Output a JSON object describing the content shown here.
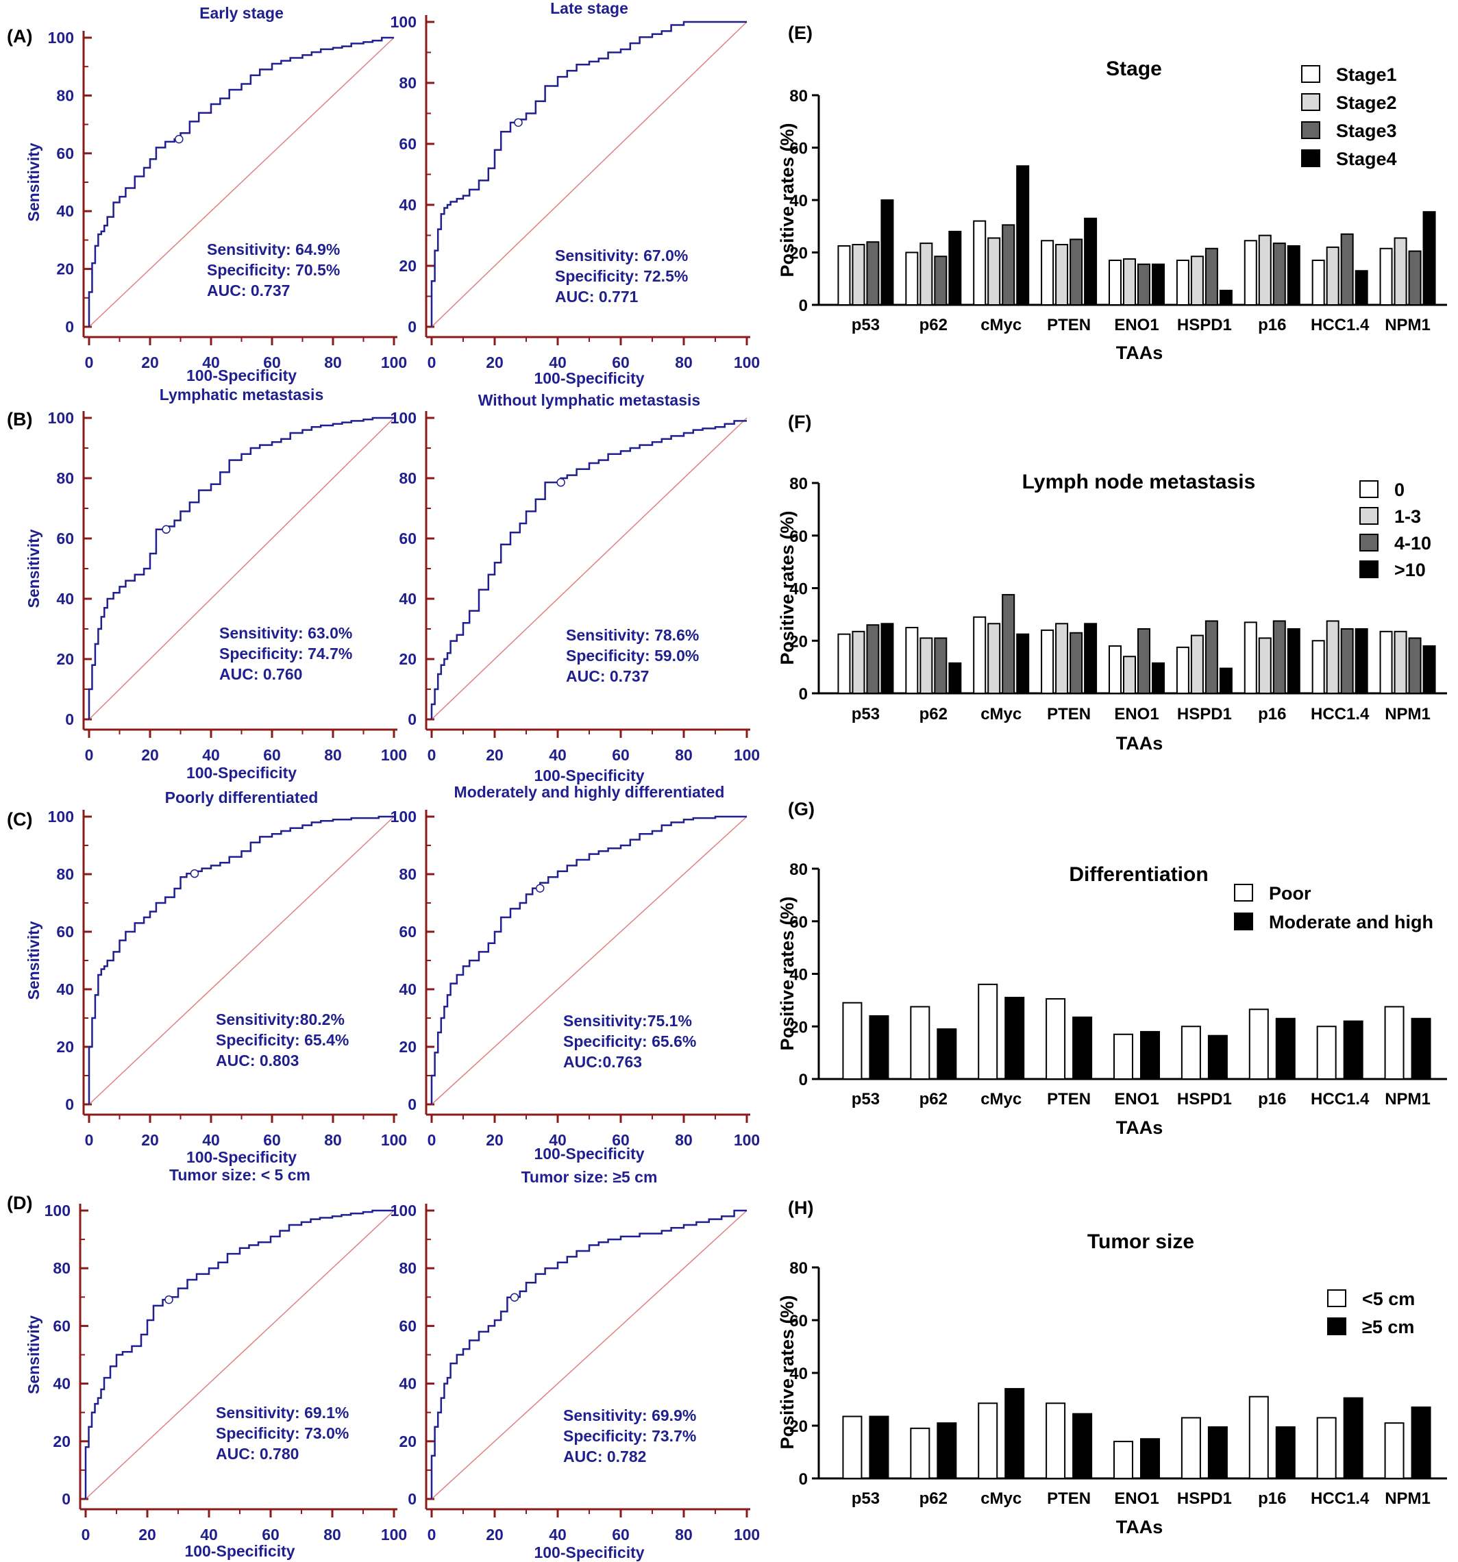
{
  "colors": {
    "roc_curve": "#1f1f8f",
    "roc_axis": "#8b1a1a",
    "diagonal": "#e08080",
    "bar_edge": "#000000"
  },
  "chart_data": [
    {
      "type": "line",
      "panel": "(A)",
      "title": "Early stage",
      "xlabel": "100-Specificity",
      "ylabel": "Sensitivity",
      "xlim": [
        0,
        100
      ],
      "ylim": [
        0,
        100
      ],
      "x": [
        0,
        1,
        2,
        3,
        4,
        5,
        6,
        8,
        10,
        12,
        15,
        18,
        20,
        22,
        25,
        28,
        30,
        33,
        36,
        40,
        43,
        46,
        50,
        53,
        56,
        60,
        63,
        66,
        70,
        73,
        76,
        80,
        83,
        86,
        90,
        93,
        96,
        100
      ],
      "y": [
        0,
        12,
        22,
        28,
        32,
        33,
        35,
        38,
        43,
        45,
        48,
        52,
        55,
        58,
        62,
        64,
        64.9,
        67,
        71,
        74,
        77,
        79,
        82,
        84,
        87,
        89,
        91,
        92,
        93,
        94,
        95,
        96,
        96.5,
        97,
        98,
        98.5,
        99,
        100
      ],
      "cutoff": [
        29.5,
        64.9
      ],
      "stats": [
        "Sensitivity: 64.9%",
        "Specificity: 70.5%",
        "AUC: 0.737"
      ]
    },
    {
      "type": "line",
      "panel": "",
      "title": "Late stage",
      "xlabel": "100-Specificity",
      "ylabel": "",
      "xlim": [
        0,
        100
      ],
      "ylim": [
        0,
        100
      ],
      "x": [
        0,
        1,
        2,
        3,
        4,
        5,
        6,
        8,
        10,
        12,
        15,
        18,
        20,
        22,
        25,
        27.5,
        30,
        33,
        36,
        40,
        43,
        46,
        50,
        53,
        56,
        60,
        63,
        66,
        70,
        73,
        76,
        80,
        83,
        86,
        90,
        93,
        96,
        100
      ],
      "y": [
        0,
        15,
        25,
        32,
        37,
        39,
        40,
        41,
        42,
        43,
        45,
        48,
        52,
        58,
        64,
        67,
        68,
        70,
        74,
        79,
        82,
        84,
        86,
        87,
        88,
        90,
        91,
        93,
        95,
        96,
        97,
        99,
        100,
        100,
        100,
        100,
        100,
        100
      ],
      "cutoff": [
        27.5,
        67.0
      ],
      "stats": [
        "Sensitivity: 67.0%",
        "Specificity: 72.5%",
        "AUC: 0.771"
      ]
    },
    {
      "type": "line",
      "panel": "(B)",
      "title": "Lymphatic metastasis",
      "xlabel": "100-Specificity",
      "ylabel": "Sensitivity",
      "xlim": [
        0,
        100
      ],
      "ylim": [
        0,
        100
      ],
      "x": [
        0,
        1,
        2,
        3,
        4,
        5,
        6,
        8,
        10,
        12,
        15,
        18,
        20,
        22,
        25,
        28,
        30,
        33,
        36,
        40,
        43,
        46,
        50,
        53,
        56,
        60,
        63,
        66,
        70,
        73,
        76,
        80,
        83,
        86,
        90,
        93,
        96,
        100
      ],
      "y": [
        0,
        10,
        18,
        25,
        30,
        34,
        37,
        40,
        42,
        44,
        46,
        48,
        50,
        55,
        63,
        64,
        66,
        69,
        72,
        76,
        78,
        82,
        86,
        88,
        90,
        91,
        92,
        93,
        95,
        96,
        97,
        97.5,
        98,
        98.5,
        99,
        99.5,
        100,
        100
      ],
      "cutoff": [
        25.3,
        63.0
      ],
      "stats": [
        "Sensitivity: 63.0%",
        "Specificity: 74.7%",
        "AUC: 0.760"
      ]
    },
    {
      "type": "line",
      "panel": "",
      "title": "Without lymphatic metastasis",
      "xlabel": "100-Specificity",
      "ylabel": "",
      "xlim": [
        0,
        100
      ],
      "ylim": [
        0,
        100
      ],
      "x": [
        0,
        1,
        2,
        3,
        4,
        5,
        6,
        8,
        10,
        12,
        15,
        18,
        20,
        22,
        25,
        28,
        30,
        33,
        36,
        41,
        43,
        46,
        50,
        53,
        56,
        60,
        63,
        66,
        70,
        73,
        76,
        80,
        83,
        86,
        90,
        93,
        96,
        100
      ],
      "y": [
        0,
        5,
        10,
        15,
        18,
        20,
        22,
        26,
        28,
        32,
        36,
        43,
        48,
        52,
        58,
        62,
        65,
        69,
        73,
        78.6,
        80,
        81,
        83,
        85,
        86,
        88,
        89,
        90,
        91,
        92,
        93,
        94,
        95,
        96,
        96.5,
        97,
        98,
        99
      ],
      "cutoff": [
        41.0,
        78.6
      ],
      "stats": [
        "Sensitivity: 78.6%",
        "Specificity: 59.0%",
        "AUC: 0.737"
      ]
    },
    {
      "type": "line",
      "panel": "(C)",
      "title": "Poorly differentiated",
      "xlabel": "100-Specificity",
      "ylabel": "Sensitivity",
      "xlim": [
        0,
        100
      ],
      "ylim": [
        0,
        100
      ],
      "x": [
        0,
        1,
        2,
        3,
        4,
        5,
        6,
        8,
        10,
        12,
        15,
        18,
        20,
        22,
        25,
        28,
        30,
        32,
        34.6,
        37,
        40,
        43,
        46,
        50,
        53,
        56,
        60,
        63,
        66,
        70,
        73,
        76,
        80,
        83,
        86,
        90,
        95,
        100
      ],
      "y": [
        0,
        20,
        30,
        38,
        45,
        47,
        48,
        50,
        53,
        57,
        60,
        63,
        65,
        67,
        70,
        72,
        75,
        79,
        80.2,
        81,
        82,
        83,
        84,
        86,
        88,
        91,
        93,
        94,
        95,
        96,
        97,
        98,
        98.5,
        99,
        99,
        99.5,
        99.5,
        100
      ],
      "cutoff": [
        34.6,
        80.2
      ],
      "stats": [
        "Sensitivity:80.2%",
        "Specificity: 65.4%",
        "AUC: 0.803"
      ]
    },
    {
      "type": "line",
      "panel": "",
      "title": "Moderately and highly differentiated",
      "xlabel": "100-Specificity",
      "ylabel": "",
      "xlim": [
        0,
        100
      ],
      "ylim": [
        0,
        100
      ],
      "x": [
        0,
        1,
        2,
        3,
        4,
        5,
        6,
        8,
        10,
        12,
        15,
        18,
        20,
        22,
        25,
        28,
        30,
        32,
        34.4,
        37,
        40,
        43,
        46,
        50,
        53,
        56,
        60,
        63,
        66,
        70,
        73,
        76,
        80,
        83,
        86,
        90,
        95,
        100
      ],
      "y": [
        0,
        10,
        18,
        25,
        30,
        34,
        38,
        42,
        45,
        48,
        50,
        53,
        56,
        60,
        65,
        68,
        70,
        73,
        75.1,
        77,
        79,
        81,
        83,
        85,
        87,
        88,
        89,
        90,
        92,
        94,
        95,
        97,
        98,
        99,
        99.5,
        99.5,
        100,
        100
      ],
      "cutoff": [
        34.4,
        75.1
      ],
      "stats": [
        "Sensitivity:75.1%",
        "Specificity: 65.6%",
        "AUC:0.763"
      ]
    },
    {
      "type": "line",
      "panel": "(D)",
      "title": "Tumor size: < 5 cm",
      "xlabel": "100-Specificity",
      "ylabel": "Sensitivity",
      "xlim": [
        0,
        100
      ],
      "ylim": [
        0,
        100
      ],
      "x": [
        0,
        1,
        2,
        3,
        4,
        5,
        6,
        8,
        10,
        12,
        15,
        18,
        20,
        22,
        25,
        27,
        30,
        33,
        36,
        40,
        43,
        46,
        50,
        53,
        56,
        60,
        63,
        66,
        70,
        73,
        76,
        80,
        83,
        86,
        90,
        93,
        96,
        100
      ],
      "y": [
        0,
        18,
        25,
        30,
        33,
        35,
        38,
        42,
        46,
        50,
        51,
        53,
        57,
        62,
        67,
        69.1,
        70,
        73,
        76,
        78,
        80,
        82,
        85,
        87,
        88,
        89,
        91,
        93,
        95,
        96,
        97,
        97.5,
        98,
        98.5,
        99,
        99.5,
        100,
        100
      ],
      "cutoff": [
        27.0,
        69.1
      ],
      "stats": [
        "Sensitivity: 69.1%",
        "Specificity: 73.0%",
        "AUC: 0.780"
      ]
    },
    {
      "type": "line",
      "panel": "",
      "title": "Tumor size: ≥5 cm",
      "xlabel": "100-Specificity",
      "ylabel": "",
      "xlim": [
        0,
        100
      ],
      "ylim": [
        0,
        100
      ],
      "x": [
        0,
        1,
        2,
        3,
        4,
        5,
        6,
        8,
        10,
        12,
        15,
        18,
        20,
        22,
        24,
        26.3,
        28,
        30,
        33,
        36,
        40,
        43,
        46,
        50,
        53,
        56,
        60,
        63,
        66,
        70,
        73,
        76,
        80,
        84,
        88,
        92,
        96,
        100
      ],
      "y": [
        0,
        15,
        25,
        30,
        35,
        40,
        42,
        47,
        50,
        52,
        55,
        58,
        60,
        62,
        65,
        69.9,
        70,
        72,
        75,
        78,
        80,
        82,
        84,
        86,
        88,
        89,
        90,
        91,
        91,
        92,
        92,
        93,
        94,
        95,
        96,
        97,
        98,
        100
      ],
      "cutoff": [
        26.3,
        69.9
      ],
      "stats": [
        "Sensitivity: 69.9%",
        "Specificity: 73.7%",
        "AUC: 0.782"
      ]
    },
    {
      "type": "bar",
      "panel": "(E)",
      "title": "Stage",
      "xlabel": "TAAs",
      "ylabel": "Positive rates (%)",
      "ylim": [
        0,
        80
      ],
      "categories": [
        "p53",
        "p62",
        "cMyc",
        "PTEN",
        "ENO1",
        "HSPD1",
        "p16",
        "HCC1.4",
        "NPM1"
      ],
      "series": [
        {
          "name": "Stage1",
          "color": "#ffffff",
          "values": [
            22.5,
            20,
            32,
            24.5,
            17,
            17,
            24.5,
            17,
            21.5
          ]
        },
        {
          "name": "Stage2",
          "color": "#d9d9d9",
          "values": [
            23,
            23.5,
            25.5,
            23,
            17.5,
            18.5,
            26.5,
            22,
            25.5
          ]
        },
        {
          "name": "Stage3",
          "color": "#666666",
          "values": [
            24,
            18.5,
            30.5,
            25,
            15.5,
            21.5,
            23.5,
            27,
            20.5
          ]
        },
        {
          "name": "Stage4",
          "color": "#000000",
          "values": [
            40,
            28,
            53,
            33,
            15.5,
            5.5,
            22.5,
            13,
            35.5
          ]
        }
      ]
    },
    {
      "type": "bar",
      "panel": "(F)",
      "title": "Lymph node metastasis",
      "xlabel": "TAAs",
      "ylabel": "Positive rates (%)",
      "ylim": [
        0,
        80
      ],
      "categories": [
        "p53",
        "p62",
        "cMyc",
        "PTEN",
        "ENO1",
        "HSPD1",
        "p16",
        "HCC1.4",
        "NPM1"
      ],
      "series": [
        {
          "name": "0",
          "color": "#ffffff",
          "values": [
            22.5,
            25,
            29,
            24,
            18,
            17.5,
            27,
            20,
            23.5
          ]
        },
        {
          "name": "1-3",
          "color": "#d9d9d9",
          "values": [
            23.5,
            21,
            26.5,
            26.5,
            14,
            22,
            21,
            27.5,
            23.5
          ]
        },
        {
          "name": "4-10",
          "color": "#666666",
          "values": [
            26,
            21,
            37.5,
            23,
            24.5,
            27.5,
            27.5,
            24.5,
            21
          ]
        },
        {
          "name": ">10",
          "color": "#000000",
          "values": [
            26.5,
            11.5,
            22.5,
            26.5,
            11.5,
            9.5,
            24.5,
            24.5,
            18
          ]
        }
      ]
    },
    {
      "type": "bar",
      "panel": "(G)",
      "title": "Differentiation",
      "xlabel": "TAAs",
      "ylabel": "Positive rates (%)",
      "ylim": [
        0,
        80
      ],
      "categories": [
        "p53",
        "p62",
        "cMyc",
        "PTEN",
        "ENO1",
        "HSPD1",
        "p16",
        "HCC1.4",
        "NPM1"
      ],
      "series": [
        {
          "name": "Poor",
          "color": "#ffffff",
          "values": [
            29,
            27.5,
            36,
            30.5,
            17,
            20,
            26.5,
            20,
            27.5
          ]
        },
        {
          "name": "Moderate and high",
          "color": "#000000",
          "values": [
            24,
            19,
            31,
            23.5,
            18,
            16.5,
            23,
            22,
            23
          ]
        }
      ]
    },
    {
      "type": "bar",
      "panel": "(H)",
      "title": "Tumor size",
      "xlabel": "TAAs",
      "ylabel": "Positive rates (%)",
      "ylim": [
        0,
        80
      ],
      "categories": [
        "p53",
        "p62",
        "cMyc",
        "PTEN",
        "ENO1",
        "HSPD1",
        "p16",
        "HCC1.4",
        "NPM1"
      ],
      "series": [
        {
          "name": "<5 cm",
          "color": "#ffffff",
          "values": [
            23.5,
            19,
            28.5,
            28.5,
            14,
            23,
            31,
            23,
            21
          ]
        },
        {
          "name": "≥5 cm",
          "color": "#000000",
          "values": [
            23.5,
            21,
            34,
            24.5,
            15,
            19.5,
            19.5,
            30.5,
            27
          ]
        }
      ]
    }
  ]
}
